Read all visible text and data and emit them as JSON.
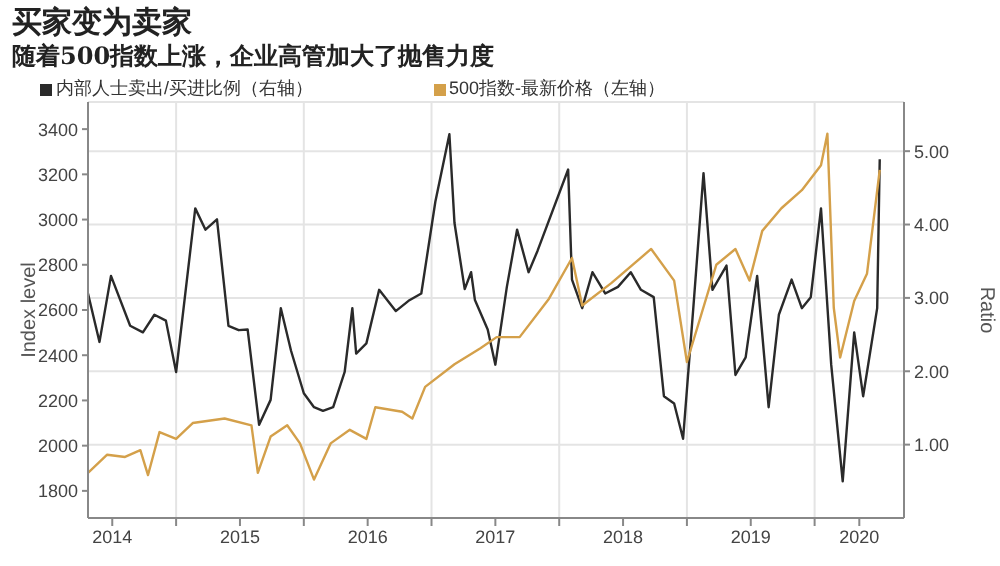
{
  "chart_data": {
    "type": "line",
    "title": "买家变为卖家",
    "subtitle": "随着500指数上涨，企业高管加大了抛售力度",
    "ylabel": "Index level",
    "y2label": "Ratio",
    "legend": "top left",
    "grid": true,
    "marker": "none",
    "line_style": "solid",
    "xlim": [
      2014.31,
      2020.7
    ],
    "xticks": [
      {
        "value": 2015,
        "label": null
      },
      {
        "value": 2016,
        "label": null
      },
      {
        "value": 2017,
        "label": null
      },
      {
        "value": 2018,
        "label": null
      },
      {
        "value": 2019,
        "label": null
      },
      {
        "value": 2020,
        "label": null
      },
      {
        "value": 2014.5,
        "label": "2014"
      },
      {
        "value": 2015.5,
        "label": "2015"
      },
      {
        "value": 2016.5,
        "label": "2016"
      },
      {
        "value": 2017.5,
        "label": "2017"
      },
      {
        "value": 2018.5,
        "label": "2018"
      },
      {
        "value": 2019.5,
        "label": "2019"
      },
      {
        "value": 2020.35,
        "label": "2020"
      }
    ],
    "ylim": [
      1680,
      3520
    ],
    "yticks": [
      1800,
      2000,
      2200,
      2400,
      2600,
      2800,
      3000,
      3200,
      3400
    ],
    "y2lim": [
      0,
      5.67
    ],
    "y2ticks": [
      {
        "value": 1,
        "label": "1.00"
      },
      {
        "value": 2,
        "label": "2.00"
      },
      {
        "value": 3,
        "label": "3.00"
      },
      {
        "value": 4,
        "label": "4.00"
      },
      {
        "value": 5,
        "label": "5.00"
      }
    ],
    "series": [
      {
        "name": "内部人士卖出/买进比例（右轴）",
        "color": "#2a2a2a",
        "axis": "y2",
        "x": [
          2014.31,
          2014.4,
          2014.49,
          2014.64,
          2014.74,
          2014.83,
          2014.92,
          2015.0,
          2015.15,
          2015.23,
          2015.32,
          2015.41,
          2015.49,
          2015.56,
          2015.65,
          2015.74,
          2015.82,
          2015.9,
          2016.0,
          2016.08,
          2016.15,
          2016.23,
          2016.32,
          2016.38,
          2016.41,
          2016.49,
          2016.59,
          2016.72,
          2016.82,
          2016.92,
          2017.03,
          2017.14,
          2017.18,
          2017.26,
          2017.31,
          2017.34,
          2017.44,
          2017.5,
          2017.59,
          2017.67,
          2017.76,
          2017.83,
          2018.07,
          2018.1,
          2018.18,
          2018.26,
          2018.36,
          2018.46,
          2018.56,
          2018.64,
          2018.74,
          2018.82,
          2018.9,
          2018.97,
          2019.05,
          2019.13,
          2019.2,
          2019.31,
          2019.38,
          2019.46,
          2019.55,
          2019.64,
          2019.72,
          2019.82,
          2019.9,
          2019.97,
          2020.05,
          2020.13,
          2020.22,
          2020.31,
          2020.38,
          2020.49,
          2020.51
        ],
        "values": [
          3.06,
          2.4,
          3.3,
          2.62,
          2.53,
          2.77,
          2.69,
          1.99,
          4.22,
          3.93,
          4.07,
          2.62,
          2.56,
          2.57,
          1.27,
          1.61,
          2.86,
          2.28,
          1.7,
          1.51,
          1.46,
          1.51,
          1.99,
          2.86,
          2.24,
          2.38,
          3.11,
          2.82,
          2.96,
          3.06,
          4.31,
          5.23,
          4.02,
          3.12,
          3.35,
          2.97,
          2.57,
          2.09,
          3.15,
          3.93,
          3.35,
          3.64,
          4.75,
          3.25,
          2.86,
          3.35,
          3.06,
          3.15,
          3.35,
          3.11,
          3.01,
          1.66,
          1.56,
          1.08,
          2.86,
          4.7,
          3.11,
          3.44,
          1.95,
          2.19,
          3.3,
          1.51,
          2.77,
          3.25,
          2.86,
          3.01,
          4.22,
          2.09,
          0.5,
          2.53,
          1.66,
          2.86,
          4.89
        ]
      },
      {
        "name": "500指数-最新价格（左轴）",
        "color": "#d4a04a",
        "x": [
          2014.31,
          2014.46,
          2014.6,
          2014.72,
          2014.78,
          2014.87,
          2015.0,
          2015.13,
          2015.38,
          2015.59,
          2015.64,
          2015.74,
          2015.87,
          2015.97,
          2016.08,
          2016.21,
          2016.36,
          2016.49,
          2016.56,
          2016.77,
          2016.85,
          2016.95,
          2017.18,
          2017.38,
          2017.51,
          2017.69,
          2017.92,
          2018.1,
          2018.18,
          2018.41,
          2018.72,
          2018.9,
          2019.0,
          2019.23,
          2019.38,
          2019.49,
          2019.59,
          2019.74,
          2019.9,
          2020.05,
          2020.1,
          2020.15,
          2020.2,
          2020.31,
          2020.41,
          2020.51
        ],
        "values": [
          1880,
          1960,
          1950,
          1980,
          1870,
          2060,
          2030,
          2100,
          2120,
          2090,
          1880,
          2040,
          2090,
          2010,
          1850,
          2010,
          2070,
          2030,
          2170,
          2150,
          2120,
          2260,
          2360,
          2430,
          2480,
          2480,
          2650,
          2830,
          2620,
          2720,
          2870,
          2730,
          2370,
          2800,
          2870,
          2730,
          2950,
          3050,
          3130,
          3240,
          3380,
          2610,
          2390,
          2640,
          2760,
          3220
        ]
      }
    ]
  }
}
